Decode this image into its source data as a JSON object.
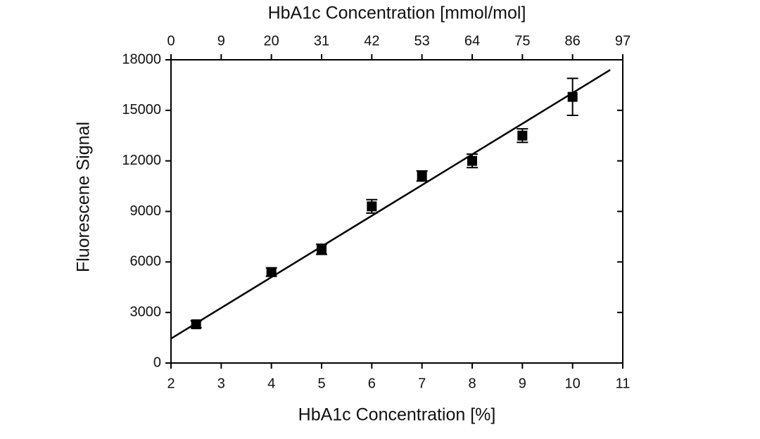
{
  "chart_data": {
    "type": "scatter",
    "xlabel": "HbA1c Concentration [%]",
    "x2label": "HbA1c Concentration [mmol/mol]",
    "ylabel": "Fluorescene Signal",
    "x": [
      2.5,
      4,
      5,
      6,
      7,
      8,
      9,
      10
    ],
    "series": [
      {
        "color": "#000000",
        "values": [
          2300,
          5400,
          6750,
          9300,
          11100,
          12000,
          13500,
          15800
        ],
        "errors": [
          200,
          250,
          300,
          400,
          300,
          400,
          400,
          1100
        ]
      }
    ],
    "fit": {
      "x": [
        2,
        10.75
      ],
      "y": [
        1450,
        17400
      ],
      "color": "#000000"
    },
    "xlim": [
      2,
      11
    ],
    "xticks": [
      2,
      3,
      4,
      5,
      6,
      7,
      8,
      9,
      10,
      11
    ],
    "x2ticks": [
      0,
      9,
      20,
      31,
      42,
      53,
      64,
      75,
      86,
      97
    ],
    "ylim": [
      0,
      18000
    ],
    "yticks": [
      0,
      3000,
      6000,
      9000,
      12000,
      15000,
      18000
    ],
    "grid": false
  }
}
